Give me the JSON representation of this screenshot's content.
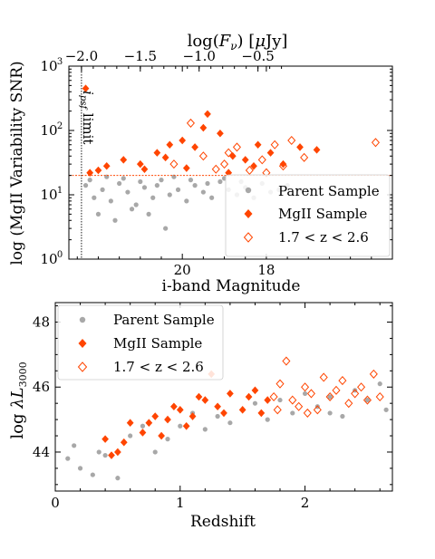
{
  "colors": {
    "parent": "#a8a8a8",
    "mgii": "#ff4500",
    "threshold_line": "#ff4500"
  },
  "chart_data": [
    {
      "type": "scatter",
      "top_axis_label": "log(Fν) [μJy]",
      "top_ticks": [
        "−2.0",
        "−1.5",
        "−1.0",
        "−0.5"
      ],
      "top_tick_values": [
        -2.0,
        -1.5,
        -1.0,
        -0.5
      ],
      "xlabel": "i-band Magnitude",
      "ylabel": "log (MgII Variability SNR)",
      "x_ticks": [
        "20",
        "18"
      ],
      "x_tick_values": [
        20,
        18
      ],
      "xlim": [
        22.7,
        15.0
      ],
      "ylim": [
        1,
        1000
      ],
      "yscale": "log",
      "y_ticks": [
        "10⁰",
        "10¹",
        "10²",
        "10³"
      ],
      "y_tick_values": [
        1,
        10,
        100,
        1000
      ],
      "psf_limit_mag": 22.4,
      "psf_limit_label": "i_psf limit",
      "snr_threshold": 20,
      "legend": [
        {
          "label": "Parent Sample",
          "marker": "circle",
          "series": "parent"
        },
        {
          "label": "MgII Sample",
          "marker": "diamond",
          "series": "mgii"
        },
        {
          "label": "1.7 < z < 2.6",
          "marker": "open-diamond",
          "series": "highz"
        }
      ],
      "legend_position": "lower-right",
      "series": [
        {
          "name": "Parent Sample",
          "points": [
            [
              22.3,
              14
            ],
            [
              22.1,
              9
            ],
            [
              21.9,
              12
            ],
            [
              21.7,
              8
            ],
            [
              21.5,
              15
            ],
            [
              21.3,
              11
            ],
            [
              21.1,
              7
            ],
            [
              20.9,
              13
            ],
            [
              20.7,
              9
            ],
            [
              20.5,
              17
            ],
            [
              20.3,
              10
            ],
            [
              20.1,
              12
            ],
            [
              19.9,
              8
            ],
            [
              19.7,
              14
            ],
            [
              19.5,
              11
            ],
            [
              19.3,
              9
            ],
            [
              19.1,
              16
            ],
            [
              18.9,
              12
            ],
            [
              18.7,
              10
            ],
            [
              18.5,
              13
            ],
            [
              18.3,
              9
            ],
            [
              18.1,
              15
            ],
            [
              17.9,
              11
            ],
            [
              17.7,
              12
            ],
            [
              17.5,
              14
            ],
            [
              22.0,
              5
            ],
            [
              21.6,
              4
            ],
            [
              21.2,
              6
            ],
            [
              20.8,
              5
            ],
            [
              20.4,
              3
            ],
            [
              22.2,
              17
            ],
            [
              21.8,
              19
            ],
            [
              21.4,
              18
            ],
            [
              21.0,
              16
            ],
            [
              20.6,
              14
            ],
            [
              20.2,
              19
            ],
            [
              19.8,
              17
            ],
            [
              19.4,
              15
            ],
            [
              19.0,
              18
            ],
            [
              18.6,
              16
            ]
          ]
        },
        {
          "name": "MgII Sample",
          "points": [
            [
              22.3,
              450
            ],
            [
              22.2,
              22
            ],
            [
              21.8,
              28
            ],
            [
              21.4,
              35
            ],
            [
              21.0,
              30
            ],
            [
              20.6,
              45
            ],
            [
              20.3,
              60
            ],
            [
              20.0,
              70
            ],
            [
              19.7,
              55
            ],
            [
              19.4,
              180
            ],
            [
              19.1,
              90
            ],
            [
              18.8,
              40
            ],
            [
              18.5,
              35
            ],
            [
              18.2,
              60
            ],
            [
              17.9,
              45
            ],
            [
              17.6,
              30
            ],
            [
              17.2,
              55
            ],
            [
              16.8,
              50
            ],
            [
              20.9,
              25
            ],
            [
              20.4,
              38
            ],
            [
              19.9,
              26
            ],
            [
              19.5,
              110
            ],
            [
              18.9,
              22
            ],
            [
              18.3,
              28
            ],
            [
              22.0,
              24
            ]
          ]
        },
        {
          "name": "1.7 < z < 2.6",
          "points": [
            [
              20.2,
              30
            ],
            [
              19.8,
              130
            ],
            [
              19.5,
              40
            ],
            [
              19.2,
              25
            ],
            [
              19.0,
              30
            ],
            [
              18.7,
              55
            ],
            [
              18.4,
              24
            ],
            [
              18.1,
              35
            ],
            [
              17.8,
              60
            ],
            [
              17.6,
              28
            ],
            [
              17.4,
              70
            ],
            [
              17.1,
              38
            ],
            [
              15.4,
              65
            ],
            [
              18.9,
              45
            ],
            [
              18.0,
              22
            ]
          ]
        }
      ]
    },
    {
      "type": "scatter",
      "xlabel": "Redshift",
      "ylabel": "log λL3000",
      "xlim": [
        0,
        2.7
      ],
      "ylim": [
        42.8,
        48.6
      ],
      "x_ticks": [
        "0",
        "1",
        "2"
      ],
      "x_tick_values": [
        0,
        1,
        2
      ],
      "y_ticks": [
        "44",
        "46",
        "48"
      ],
      "y_tick_values": [
        44,
        46,
        48
      ],
      "legend": [
        {
          "label": "Parent Sample",
          "marker": "circle",
          "series": "parent"
        },
        {
          "label": "MgII Sample",
          "marker": "diamond",
          "series": "mgii"
        },
        {
          "label": "1.7 < z < 2.6",
          "marker": "open-diamond",
          "series": "highz"
        }
      ],
      "legend_position": "upper-left",
      "series": [
        {
          "name": "Parent Sample",
          "points": [
            [
              0.1,
              43.8
            ],
            [
              0.2,
              43.5
            ],
            [
              0.3,
              43.3
            ],
            [
              0.4,
              43.9
            ],
            [
              0.5,
              43.2
            ],
            [
              0.6,
              44.5
            ],
            [
              0.8,
              44.0
            ],
            [
              1.0,
              44.8
            ],
            [
              1.1,
              45.2
            ],
            [
              1.2,
              44.7
            ],
            [
              1.3,
              45.1
            ],
            [
              1.5,
              45.3
            ],
            [
              1.7,
              45.0
            ],
            [
              1.8,
              45.6
            ],
            [
              1.9,
              45.2
            ],
            [
              2.0,
              45.8
            ],
            [
              2.1,
              45.4
            ],
            [
              2.2,
              45.7
            ],
            [
              2.3,
              45.1
            ],
            [
              2.4,
              45.9
            ],
            [
              2.5,
              45.6
            ],
            [
              2.6,
              46.1
            ],
            [
              2.65,
              45.3
            ],
            [
              0.15,
              44.2
            ],
            [
              0.35,
              44.0
            ],
            [
              0.7,
              44.8
            ],
            [
              0.9,
              44.4
            ],
            [
              1.4,
              44.9
            ],
            [
              1.6,
              45.5
            ],
            [
              2.2,
              45.2
            ]
          ]
        },
        {
          "name": "MgII Sample",
          "points": [
            [
              0.4,
              44.4
            ],
            [
              0.5,
              44.0
            ],
            [
              0.6,
              44.9
            ],
            [
              0.7,
              44.6
            ],
            [
              0.8,
              45.1
            ],
            [
              0.9,
              45.0
            ],
            [
              1.0,
              45.3
            ],
            [
              1.1,
              45.1
            ],
            [
              1.2,
              45.6
            ],
            [
              1.3,
              45.4
            ],
            [
              1.4,
              45.8
            ],
            [
              1.5,
              45.3
            ],
            [
              1.6,
              45.9
            ],
            [
              1.7,
              45.6
            ],
            [
              0.55,
              44.3
            ],
            [
              0.75,
              44.9
            ],
            [
              0.95,
              45.4
            ],
            [
              1.15,
              45.7
            ],
            [
              1.35,
              45.2
            ],
            [
              1.55,
              45.7
            ],
            [
              1.25,
              46.4
            ],
            [
              0.45,
              43.9
            ],
            [
              0.85,
              44.5
            ],
            [
              1.05,
              44.8
            ],
            [
              1.65,
              45.2
            ]
          ]
        },
        {
          "name": "1.7 < z < 2.6",
          "points": [
            [
              1.75,
              45.7
            ],
            [
              1.8,
              46.1
            ],
            [
              1.85,
              46.8
            ],
            [
              1.9,
              45.6
            ],
            [
              1.95,
              45.4
            ],
            [
              2.0,
              46.0
            ],
            [
              2.05,
              45.8
            ],
            [
              2.1,
              45.3
            ],
            [
              2.15,
              46.3
            ],
            [
              2.2,
              45.7
            ],
            [
              2.25,
              45.9
            ],
            [
              2.3,
              46.2
            ],
            [
              2.35,
              45.5
            ],
            [
              2.4,
              45.8
            ],
            [
              2.45,
              46.0
            ],
            [
              2.5,
              45.6
            ],
            [
              2.55,
              46.4
            ],
            [
              2.6,
              45.7
            ],
            [
              1.78,
              45.3
            ],
            [
              2.02,
              45.2
            ]
          ]
        }
      ]
    }
  ]
}
